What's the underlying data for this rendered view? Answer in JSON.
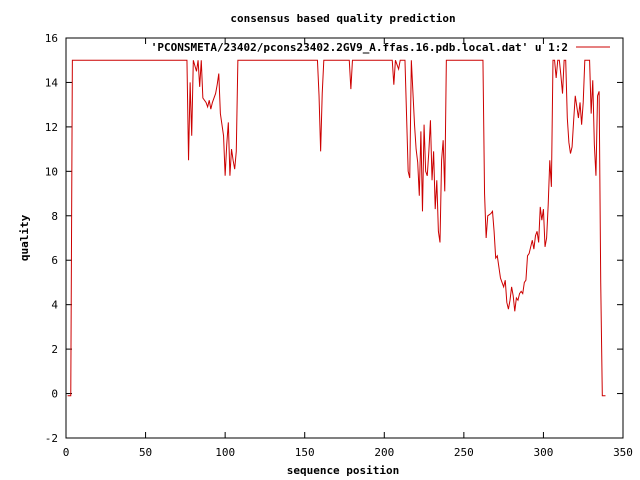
{
  "chart_data": {
    "type": "line",
    "title": "consensus based quality prediction",
    "xlabel": "sequence position",
    "ylabel": "quality",
    "xlim": [
      0,
      350
    ],
    "ylim": [
      -2,
      16
    ],
    "xticks": [
      0,
      50,
      100,
      150,
      200,
      250,
      300,
      350
    ],
    "yticks": [
      -2,
      0,
      2,
      4,
      6,
      8,
      10,
      12,
      14,
      16
    ],
    "legend_position": "top-right",
    "line_color": "#cc0000",
    "series": [
      {
        "name": "'PCONSMETA/23402/pcons23402.2GV9_A.ffas.16.pdb.local.dat' u 1:2",
        "points": [
          [
            1,
            -0.1
          ],
          [
            2,
            -0.1
          ],
          [
            3,
            -0.1
          ],
          [
            4,
            15
          ],
          [
            10,
            15
          ],
          [
            50,
            15
          ],
          [
            76,
            15
          ],
          [
            77,
            10.5
          ],
          [
            78,
            14
          ],
          [
            79,
            11.6
          ],
          [
            80,
            15
          ],
          [
            82,
            14.5
          ],
          [
            83,
            15
          ],
          [
            84,
            13.8
          ],
          [
            85,
            15
          ],
          [
            86,
            13.3
          ],
          [
            88,
            13.1
          ],
          [
            89,
            12.9
          ],
          [
            90,
            13.2
          ],
          [
            91,
            12.8
          ],
          [
            92,
            13.1
          ],
          [
            94,
            13.5
          ],
          [
            95,
            13.9
          ],
          [
            96,
            14.4
          ],
          [
            97,
            12.6
          ],
          [
            98,
            12.1
          ],
          [
            99,
            11.6
          ],
          [
            100,
            9.8
          ],
          [
            101,
            11.2
          ],
          [
            102,
            12.2
          ],
          [
            103,
            9.8
          ],
          [
            104,
            11
          ],
          [
            105,
            10.5
          ],
          [
            106,
            10.1
          ],
          [
            107,
            10.9
          ],
          [
            108,
            15
          ],
          [
            120,
            15
          ],
          [
            150,
            15
          ],
          [
            158,
            15
          ],
          [
            159,
            13.4
          ],
          [
            160,
            10.9
          ],
          [
            161,
            13.5
          ],
          [
            162,
            15
          ],
          [
            175,
            15
          ],
          [
            178,
            15
          ],
          [
            179,
            13.7
          ],
          [
            180,
            15
          ],
          [
            205,
            15
          ],
          [
            206,
            13.9
          ],
          [
            207,
            15
          ],
          [
            209,
            14.6
          ],
          [
            210,
            15
          ],
          [
            213,
            15
          ],
          [
            214,
            12.5
          ],
          [
            215,
            10
          ],
          [
            216,
            9.7
          ],
          [
            217,
            15
          ],
          [
            219,
            12.1
          ],
          [
            220,
            11
          ],
          [
            221,
            10.4
          ],
          [
            222,
            8.9
          ],
          [
            223,
            11.8
          ],
          [
            224,
            8.2
          ],
          [
            225,
            12.1
          ],
          [
            226,
            10
          ],
          [
            227,
            9.8
          ],
          [
            228,
            10.9
          ],
          [
            229,
            12.3
          ],
          [
            230,
            9.6
          ],
          [
            231,
            10.9
          ],
          [
            232,
            8.3
          ],
          [
            233,
            9.6
          ],
          [
            234,
            7.3
          ],
          [
            235,
            6.8
          ],
          [
            236,
            10.5
          ],
          [
            237,
            11.4
          ],
          [
            238,
            9.1
          ],
          [
            239,
            15
          ],
          [
            250,
            15
          ],
          [
            262,
            15
          ],
          [
            263,
            9
          ],
          [
            264,
            7
          ],
          [
            265,
            8
          ],
          [
            267,
            8.1
          ],
          [
            268,
            8.2
          ],
          [
            269,
            7.3
          ],
          [
            270,
            6.1
          ],
          [
            271,
            6.2
          ],
          [
            272,
            5.7
          ],
          [
            273,
            5.2
          ],
          [
            274,
            5
          ],
          [
            275,
            4.8
          ],
          [
            276,
            5.1
          ],
          [
            277,
            4.1
          ],
          [
            278,
            3.8
          ],
          [
            279,
            4.2
          ],
          [
            280,
            4.8
          ],
          [
            281,
            4.4
          ],
          [
            282,
            3.7
          ],
          [
            283,
            4.3
          ],
          [
            284,
            4.2
          ],
          [
            285,
            4.5
          ],
          [
            286,
            4.6
          ],
          [
            287,
            4.5
          ],
          [
            288,
            5
          ],
          [
            289,
            5.1
          ],
          [
            290,
            6.2
          ],
          [
            291,
            6.3
          ],
          [
            292,
            6.6
          ],
          [
            293,
            6.9
          ],
          [
            294,
            6.5
          ],
          [
            295,
            7.1
          ],
          [
            296,
            7.3
          ],
          [
            297,
            6.8
          ],
          [
            298,
            8.4
          ],
          [
            299,
            7.8
          ],
          [
            300,
            8.3
          ],
          [
            301,
            6.6
          ],
          [
            302,
            7
          ],
          [
            303,
            8.5
          ],
          [
            304,
            10.5
          ],
          [
            305,
            9.3
          ],
          [
            306,
            15
          ],
          [
            307,
            15
          ],
          [
            308,
            14.2
          ],
          [
            309,
            15
          ],
          [
            310,
            15
          ],
          [
            311,
            14.3
          ],
          [
            312,
            13.5
          ],
          [
            313,
            15
          ],
          [
            314,
            15
          ],
          [
            315,
            12.4
          ],
          [
            316,
            11.3
          ],
          [
            317,
            10.8
          ],
          [
            318,
            11.1
          ],
          [
            319,
            12.3
          ],
          [
            320,
            13.4
          ],
          [
            321,
            12.9
          ],
          [
            322,
            12.4
          ],
          [
            323,
            13.1
          ],
          [
            324,
            12.1
          ],
          [
            325,
            13.1
          ],
          [
            326,
            15
          ],
          [
            327,
            15
          ],
          [
            328,
            15
          ],
          [
            329,
            15
          ],
          [
            330,
            12.6
          ],
          [
            331,
            14.1
          ],
          [
            332,
            11.2
          ],
          [
            333,
            9.8
          ],
          [
            334,
            13.4
          ],
          [
            335,
            13.6
          ],
          [
            336,
            5
          ],
          [
            337,
            -0.1
          ],
          [
            338,
            -0.1
          ],
          [
            339,
            -0.1
          ]
        ]
      }
    ]
  }
}
